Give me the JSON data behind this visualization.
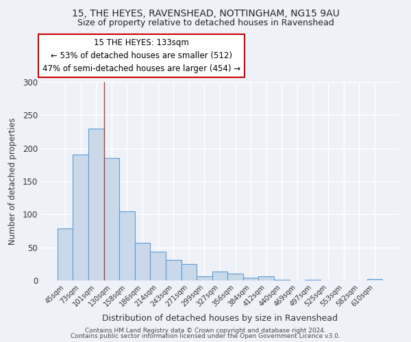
{
  "title1": "15, THE HEYES, RAVENSHEAD, NOTTINGHAM, NG15 9AU",
  "title2": "Size of property relative to detached houses in Ravenshead",
  "xlabel": "Distribution of detached houses by size in Ravenshead",
  "ylabel": "Number of detached properties",
  "bar_labels": [
    "45sqm",
    "73sqm",
    "101sqm",
    "130sqm",
    "158sqm",
    "186sqm",
    "214sqm",
    "243sqm",
    "271sqm",
    "299sqm",
    "327sqm",
    "356sqm",
    "384sqm",
    "412sqm",
    "440sqm",
    "469sqm",
    "497sqm",
    "525sqm",
    "553sqm",
    "582sqm",
    "610sqm"
  ],
  "bar_values": [
    79,
    190,
    230,
    185,
    105,
    57,
    43,
    31,
    25,
    6,
    13,
    10,
    4,
    6,
    1,
    0,
    1,
    0,
    0,
    0,
    2
  ],
  "bar_color": "#c9d9ea",
  "bar_edge_color": "#5b9bd5",
  "annotation_title": "15 THE HEYES: 133sqm",
  "annotation_line1": "← 53% of detached houses are smaller (512)",
  "annotation_line2": "47% of semi-detached houses are larger (454) →",
  "annotation_box_color": "#ffffff",
  "annotation_border_color": "#cc0000",
  "vline_x_index": 2.5,
  "ylim": [
    0,
    300
  ],
  "yticks": [
    0,
    50,
    100,
    150,
    200,
    250,
    300
  ],
  "footer1": "Contains HM Land Registry data © Crown copyright and database right 2024.",
  "footer2": "Contains public sector information licensed under the Open Government Licence v3.0.",
  "bg_color": "#eef2f8",
  "plot_bg_color": "#eef2f8",
  "grid_color": "#ffffff"
}
